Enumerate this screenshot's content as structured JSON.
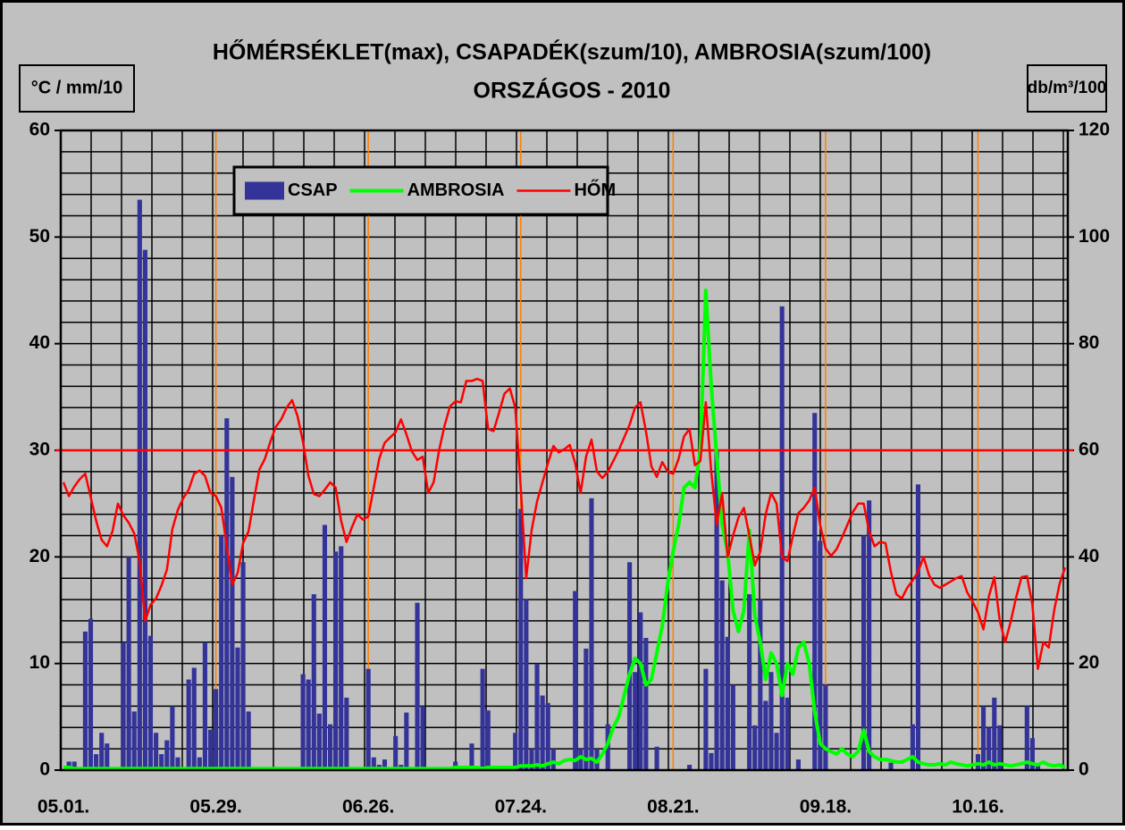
{
  "chart_data": {
    "type": "combo",
    "title": "HŐMÉRSÉKLET(max), CSAPADÉK(szum/10), AMBROSIA(szum/100)",
    "subtitle": "ORSZÁGOS - 2010",
    "y_label": "°C / mm/10",
    "y2_label": "db/m³/100",
    "categories": [
      "05.01.",
      null,
      null,
      null,
      null,
      null,
      null,
      null,
      null,
      null,
      null,
      null,
      null,
      null,
      null,
      null,
      null,
      null,
      null,
      null,
      null,
      null,
      null,
      null,
      null,
      null,
      null,
      null,
      "05.29.",
      null,
      null,
      null,
      null,
      null,
      null,
      null,
      null,
      null,
      null,
      null,
      null,
      null,
      null,
      null,
      null,
      null,
      null,
      null,
      null,
      null,
      null,
      null,
      null,
      null,
      null,
      null,
      "06.26.",
      null,
      null,
      null,
      null,
      null,
      null,
      null,
      null,
      null,
      null,
      null,
      null,
      null,
      null,
      null,
      null,
      null,
      null,
      null,
      null,
      null,
      null,
      null,
      null,
      null,
      null,
      null,
      "07.24.",
      null,
      null,
      null,
      null,
      null,
      null,
      null,
      null,
      null,
      null,
      null,
      null,
      null,
      null,
      null,
      null,
      null,
      null,
      null,
      null,
      null,
      null,
      null,
      null,
      null,
      null,
      null,
      "08.21.",
      null,
      null,
      null,
      null,
      null,
      null,
      null,
      null,
      null,
      null,
      null,
      null,
      null,
      null,
      null,
      null,
      null,
      null,
      null,
      null,
      null,
      null,
      null,
      null,
      null,
      null,
      null,
      "09.18.",
      null,
      null,
      null,
      null,
      null,
      null,
      null,
      null,
      null,
      null,
      null,
      null,
      null,
      null,
      null,
      null,
      null,
      null,
      null,
      null,
      null,
      null,
      null,
      null,
      null,
      null,
      null,
      "10.16.",
      null,
      null,
      null,
      null,
      null,
      null,
      null,
      null,
      null,
      null,
      null,
      null,
      null,
      null,
      null,
      null
    ],
    "series": [
      {
        "name": "CSAP",
        "type": "bar",
        "color": "#333399",
        "values": [
          0,
          0.8,
          0.8,
          0,
          13,
          14.2,
          1.5,
          3.5,
          2.5,
          0,
          0,
          12,
          20,
          5.5,
          53.5,
          48.8,
          12.6,
          3.5,
          1.5,
          2.8,
          6,
          1.2,
          0,
          8.5,
          9.6,
          1.2,
          12,
          3.8,
          7.6,
          22,
          33,
          27.5,
          11.5,
          19.5,
          5.5,
          0,
          0,
          0,
          0,
          0,
          0,
          0,
          0,
          0,
          9,
          8.5,
          16.5,
          5.3,
          23,
          4.3,
          20.5,
          21,
          6.8,
          0,
          0,
          0,
          9.5,
          1.2,
          0.5,
          1,
          0,
          3.2,
          0.5,
          5.4,
          0,
          15.7,
          6,
          0,
          0,
          0,
          0,
          0,
          0.8,
          0,
          0.3,
          2.5,
          0,
          9.5,
          5.6,
          0,
          0,
          0,
          0,
          3.5,
          24.5,
          16,
          2,
          10,
          7,
          6.3,
          2,
          0,
          0,
          0,
          16.8,
          2,
          11.4,
          25.5,
          2,
          0,
          4.3,
          0,
          0,
          0,
          19.5,
          9.2,
          14.8,
          12.4,
          0,
          2.2,
          0,
          0,
          0,
          0,
          0,
          0.5,
          0,
          0,
          9.5,
          1.6,
          30,
          17.8,
          12.5,
          8,
          0,
          0,
          16.5,
          4.2,
          16,
          6.5,
          9.2,
          3.5,
          43.5,
          6.8,
          0,
          1,
          0,
          0,
          33.5,
          21.5,
          8,
          0,
          0,
          0,
          0,
          0,
          0,
          22,
          25.3,
          0,
          0,
          0,
          0.7,
          0,
          0,
          0,
          4.3,
          26.8,
          0,
          0,
          0,
          0,
          0,
          0,
          0,
          0,
          0,
          0,
          1.5,
          6,
          4,
          6.8,
          4.2,
          0,
          0,
          0,
          0,
          6,
          3,
          0.5,
          0,
          0,
          0,
          0,
          0
        ]
      },
      {
        "name": "AMBROSIA",
        "type": "line",
        "axis": "y2",
        "color": "#00ff00",
        "values": [
          0.5,
          0.5,
          0.3,
          0.3,
          0.3,
          0.3,
          0.3,
          0.3,
          0.3,
          0.3,
          0.3,
          0.3,
          0.3,
          0.3,
          0.3,
          0.3,
          0.3,
          0.3,
          0.3,
          0.3,
          0.3,
          0.3,
          0.3,
          0.3,
          0.3,
          0.3,
          0.3,
          0.3,
          0.3,
          0.3,
          0.3,
          0.3,
          0.3,
          0.3,
          0.3,
          0.3,
          0.3,
          0.3,
          0.3,
          0.3,
          0.3,
          0.3,
          0.3,
          0.3,
          0.3,
          0.3,
          0.3,
          0.3,
          0.3,
          0.3,
          0.3,
          0.3,
          0.3,
          0.3,
          0.3,
          0.3,
          0.3,
          0.3,
          0.3,
          0.3,
          0.3,
          0.3,
          0.3,
          0.3,
          0.3,
          0.3,
          0.3,
          0.3,
          0.3,
          0.3,
          0.3,
          0.3,
          0.5,
          0.5,
          0.5,
          0.5,
          0.5,
          0.3,
          0.5,
          0.5,
          0.5,
          0.5,
          0.5,
          0.5,
          0.8,
          0.8,
          0.8,
          1,
          0.8,
          1.2,
          1.5,
          1.2,
          1.8,
          2,
          1.8,
          2.5,
          2,
          2.2,
          1.5,
          3,
          5,
          8,
          10,
          14,
          18,
          21,
          20,
          16,
          17,
          22,
          27,
          35,
          41,
          46,
          53,
          54,
          53,
          60,
          90,
          72,
          59,
          46,
          41,
          30,
          26,
          30,
          45,
          29,
          24,
          17,
          22,
          20,
          14,
          20,
          18,
          23,
          24,
          20,
          11,
          5,
          4,
          3.5,
          3,
          4,
          3,
          2.5,
          3.5,
          7.5,
          3.5,
          2.5,
          2,
          2,
          1.8,
          1.5,
          1.5,
          2,
          2.5,
          1.5,
          1.2,
          1,
          1,
          1.2,
          1,
          1.5,
          1.2,
          1,
          0.8,
          1,
          1.2,
          1,
          1.5,
          1,
          1.2,
          1,
          0.8,
          1,
          1.2,
          1.5,
          1.2,
          1,
          1.5,
          1,
          0.8,
          1,
          0.5
        ]
      },
      {
        "name": "HŐM",
        "type": "line",
        "color": "#ff0000",
        "values": [
          27,
          25.7,
          26.6,
          27.3,
          27.8,
          25.6,
          23.4,
          21.6,
          21,
          22.4,
          25,
          23.9,
          23.2,
          22.2,
          19.6,
          14,
          15.5,
          16.1,
          17.3,
          18.8,
          22.6,
          24.4,
          25.5,
          26.3,
          27.8,
          28.1,
          27.6,
          26,
          25.7,
          24.6,
          21,
          17.4,
          18.5,
          21.3,
          22.4,
          25.4,
          28.2,
          29.2,
          30.8,
          32.2,
          32.9,
          34,
          34.7,
          33.2,
          30.8,
          27.6,
          25.9,
          25.7,
          26.3,
          27,
          26.5,
          23.4,
          21.4,
          22.8,
          24,
          23.5,
          23.8,
          26.5,
          29.2,
          30.7,
          31.2,
          31.7,
          32.9,
          31.5,
          29.9,
          29.1,
          29.4,
          26,
          27,
          30,
          32.3,
          34.1,
          34.6,
          34.5,
          36.5,
          36.5,
          36.7,
          36.5,
          32,
          31.8,
          33.5,
          35.3,
          35.8,
          34,
          26.5,
          18,
          22.5,
          25.2,
          27,
          28.8,
          30.4,
          29.8,
          30.1,
          30.5,
          28.8,
          26,
          29.4,
          31,
          28,
          27.4,
          28,
          29,
          30,
          31.2,
          32.4,
          34,
          34.5,
          31.8,
          28.5,
          27.5,
          28.9,
          28,
          27.8,
          29.2,
          31.3,
          32,
          28.6,
          29,
          34.5,
          28,
          23,
          26,
          20,
          22,
          23.7,
          24.6,
          22,
          19.2,
          20.5,
          24,
          26,
          25,
          20,
          19.6,
          22,
          24.1,
          24.6,
          25.3,
          26.5,
          23,
          20.8,
          20.1,
          20.7,
          21.8,
          23,
          24.2,
          25,
          25,
          22.4,
          21,
          21.4,
          21.3,
          18.6,
          16.5,
          16.1,
          17.1,
          17.8,
          18.6,
          20,
          18.3,
          17.4,
          17.1,
          17.4,
          17.7,
          18,
          18.2,
          16.7,
          15.8,
          14.8,
          13.2,
          16.3,
          18.1,
          14,
          12,
          13.9,
          16.2,
          18.1,
          18.2,
          15.5,
          9.5,
          12,
          11.5,
          15,
          17.5,
          19
        ]
      }
    ],
    "ylim": [
      0,
      60
    ],
    "yticks": [
      0,
      10,
      20,
      30,
      40,
      50,
      60
    ],
    "y2lim": [
      0,
      120
    ],
    "y2ticks": [
      0,
      20,
      40,
      60,
      80,
      100,
      120
    ],
    "reference_line": {
      "value": 30,
      "color": "#ff0000"
    },
    "grid": true,
    "legend": "top-left"
  }
}
